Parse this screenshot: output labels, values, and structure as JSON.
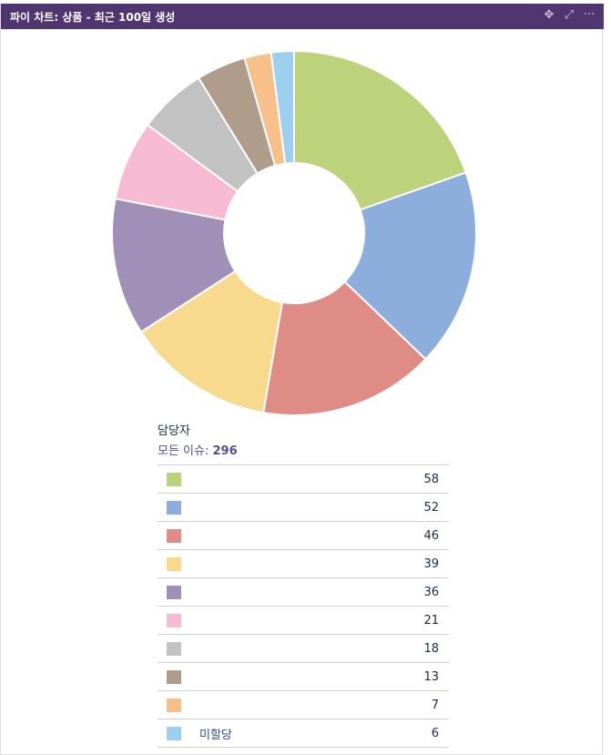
{
  "gadget": {
    "title": "파이 차트: 상품 - 최근 100일 생성",
    "icons": [
      "move-icon",
      "maximize-icon",
      "more-icon"
    ]
  },
  "legend": {
    "heading": "담당자",
    "total_label": "모든 이슈:",
    "total_value": "296"
  },
  "chart_data": {
    "type": "pie",
    "donut": true,
    "title": "",
    "categories": [
      "",
      "",
      "",
      "",
      "",
      "",
      "",
      "",
      "",
      "미할당"
    ],
    "values": [
      58,
      52,
      46,
      39,
      36,
      21,
      18,
      13,
      7,
      6
    ],
    "colors": [
      "#bcd37c",
      "#8daedd",
      "#df8b86",
      "#f7da8d",
      "#a08fb6",
      "#f7bad3",
      "#c2c2c2",
      "#b09c8a",
      "#f7c08a",
      "#9dcfee"
    ],
    "total": 296
  }
}
